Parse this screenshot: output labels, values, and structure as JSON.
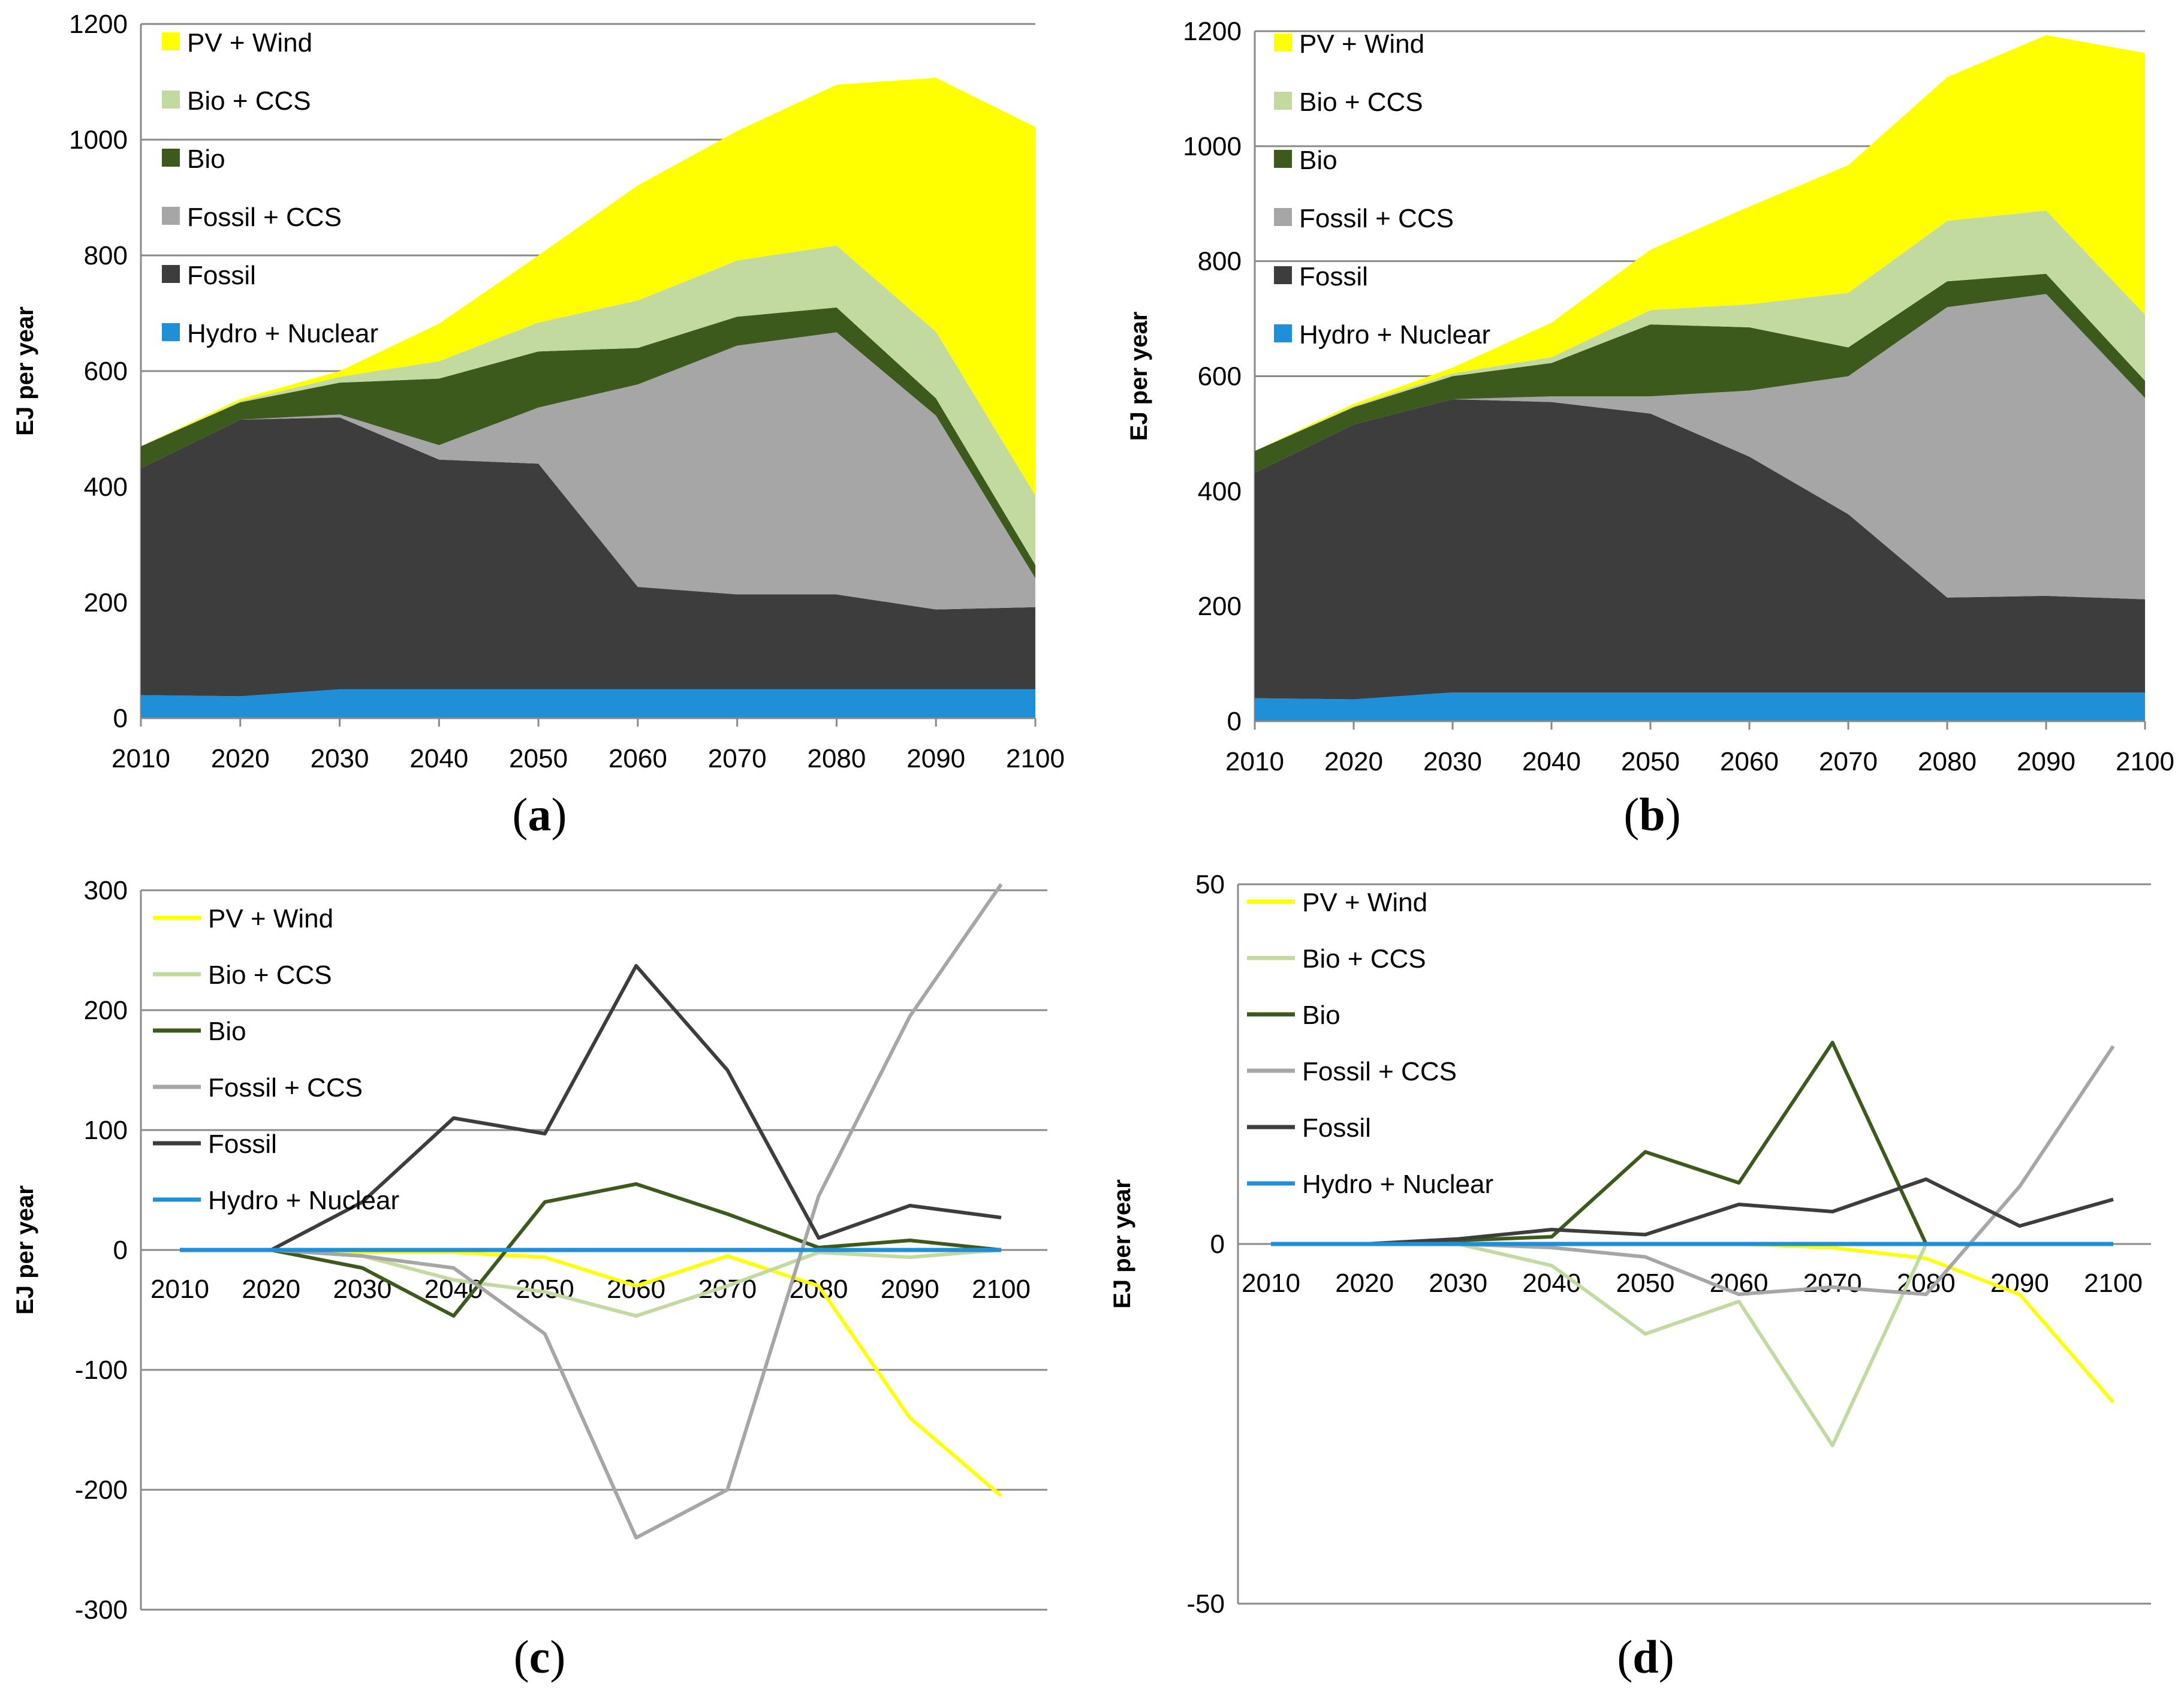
{
  "chart_data": [
    {
      "id": "a",
      "type": "area",
      "stacked": true,
      "caption": "a",
      "ylabel": "EJ per year",
      "ylim": [
        0,
        1200
      ],
      "yticks": [
        0,
        200,
        400,
        600,
        800,
        1000,
        1200
      ],
      "x": [
        2010,
        2020,
        2030,
        2040,
        2050,
        2060,
        2070,
        2080,
        2090,
        2100
      ],
      "legend_position": "top-left",
      "series": [
        {
          "name": "Hydro + Nuclear",
          "color": "#1f8fd8",
          "values": [
            40,
            38,
            50,
            50,
            50,
            50,
            50,
            50,
            50,
            50
          ]
        },
        {
          "name": "Fossil",
          "color": "#3d3d3d",
          "values": [
            392,
            478,
            470,
            397,
            390,
            177,
            164,
            164,
            138,
            142
          ]
        },
        {
          "name": "Fossil + CCS",
          "color": "#a6a6a6",
          "values": [
            0,
            0,
            5,
            25,
            97,
            350,
            430,
            453,
            335,
            50
          ]
        },
        {
          "name": "Bio",
          "color": "#3c5a1c",
          "values": [
            38,
            30,
            55,
            115,
            97,
            63,
            50,
            43,
            30,
            23
          ]
        },
        {
          "name": "Bio + CCS",
          "color": "#c2d9a0",
          "values": [
            0,
            2,
            10,
            30,
            50,
            82,
            97,
            107,
            115,
            120
          ]
        },
        {
          "name": "PV + Wind",
          "color": "#ffff00",
          "values": [
            0,
            4,
            10,
            65,
            116,
            199,
            224,
            278,
            439,
            637
          ]
        }
      ]
    },
    {
      "id": "b",
      "type": "area",
      "stacked": true,
      "caption": "b",
      "ylabel": "EJ per year",
      "ylim": [
        0,
        1200
      ],
      "yticks": [
        0,
        200,
        400,
        600,
        800,
        1000,
        1200
      ],
      "x": [
        2010,
        2020,
        2030,
        2040,
        2050,
        2060,
        2070,
        2080,
        2090,
        2100
      ],
      "legend_position": "top-left",
      "series": [
        {
          "name": "Hydro + Nuclear",
          "color": "#1f8fd8",
          "values": [
            40,
            38,
            50,
            50,
            50,
            50,
            50,
            50,
            50,
            50
          ]
        },
        {
          "name": "Fossil",
          "color": "#3d3d3d",
          "values": [
            392,
            478,
            510,
            505,
            485,
            410,
            310,
            165,
            168,
            162
          ]
        },
        {
          "name": "Fossil + CCS",
          "color": "#a6a6a6",
          "values": [
            0,
            0,
            0,
            10,
            30,
            115,
            240,
            505,
            525,
            350
          ]
        },
        {
          "name": "Bio",
          "color": "#3c5a1c",
          "values": [
            38,
            30,
            40,
            58,
            125,
            110,
            50,
            45,
            35,
            30
          ]
        },
        {
          "name": "Bio + CCS",
          "color": "#c2d9a0",
          "values": [
            0,
            2,
            5,
            10,
            25,
            40,
            95,
            105,
            110,
            115
          ]
        },
        {
          "name": "PV + Wind",
          "color": "#ffff00",
          "values": [
            0,
            4,
            10,
            60,
            105,
            170,
            222,
            250,
            305,
            455
          ]
        }
      ]
    },
    {
      "id": "c",
      "type": "line",
      "caption": "c",
      "ylabel": "EJ per year",
      "ylim": [
        -300,
        300
      ],
      "yticks": [
        -300,
        -200,
        -100,
        0,
        100,
        200,
        300
      ],
      "x": [
        2010,
        2020,
        2030,
        2040,
        2050,
        2060,
        2070,
        2080,
        2090,
        2100
      ],
      "legend_position": "top-left",
      "series": [
        {
          "name": "PV + Wind",
          "color": "#ffff00",
          "values": [
            0,
            0,
            -2,
            -2,
            -6,
            -30,
            -5,
            -30,
            -140,
            -205
          ]
        },
        {
          "name": "Bio + CCS",
          "color": "#c2d9a0",
          "values": [
            0,
            0,
            -5,
            -25,
            -35,
            -55,
            -30,
            -2,
            -6,
            0
          ]
        },
        {
          "name": "Bio",
          "color": "#3c5a1c",
          "values": [
            0,
            0,
            -15,
            -55,
            40,
            55,
            30,
            2,
            8,
            0
          ]
        },
        {
          "name": "Fossil + CCS",
          "color": "#a6a6a6",
          "values": [
            0,
            0,
            -5,
            -15,
            -70,
            -240,
            -200,
            45,
            195,
            305
          ]
        },
        {
          "name": "Fossil",
          "color": "#3d3d3d",
          "values": [
            0,
            0,
            40,
            110,
            97,
            237,
            150,
            10,
            37,
            27
          ]
        },
        {
          "name": "Hydro + Nuclear",
          "color": "#1f8fd8",
          "values": [
            0,
            0,
            0,
            0,
            0,
            0,
            0,
            0,
            0,
            0
          ]
        }
      ]
    },
    {
      "id": "d",
      "type": "line",
      "caption": "d",
      "ylabel": "EJ per year",
      "ylim": [
        -50,
        50
      ],
      "yticks": [
        -50,
        0,
        50
      ],
      "x": [
        2010,
        2020,
        2030,
        2040,
        2050,
        2060,
        2070,
        2080,
        2090,
        2100
      ],
      "legend_position": "top-left",
      "series": [
        {
          "name": "PV + Wind",
          "color": "#ffff00",
          "values": [
            0,
            0,
            0,
            0,
            0,
            0,
            -0.5,
            -2,
            -7,
            -22
          ]
        },
        {
          "name": "Bio + CCS",
          "color": "#c2d9a0",
          "values": [
            0,
            0,
            0,
            -3,
            -12.5,
            -8,
            -28,
            0,
            0,
            0
          ]
        },
        {
          "name": "Bio",
          "color": "#3c5a1c",
          "values": [
            0,
            0,
            0.5,
            1,
            12.8,
            8.5,
            28,
            0,
            0,
            0
          ]
        },
        {
          "name": "Fossil + CCS",
          "color": "#a6a6a6",
          "values": [
            0,
            0,
            0,
            -0.5,
            -1.8,
            -7,
            -6,
            -7,
            8,
            27.5
          ]
        },
        {
          "name": "Fossil",
          "color": "#3d3d3d",
          "values": [
            0,
            0,
            0.7,
            2,
            1.3,
            5.5,
            4.5,
            9,
            2.5,
            6.2
          ]
        },
        {
          "name": "Hydro + Nuclear",
          "color": "#1f8fd8",
          "values": [
            0,
            0,
            0,
            0,
            0,
            0,
            0,
            0,
            0,
            0
          ]
        }
      ]
    }
  ]
}
